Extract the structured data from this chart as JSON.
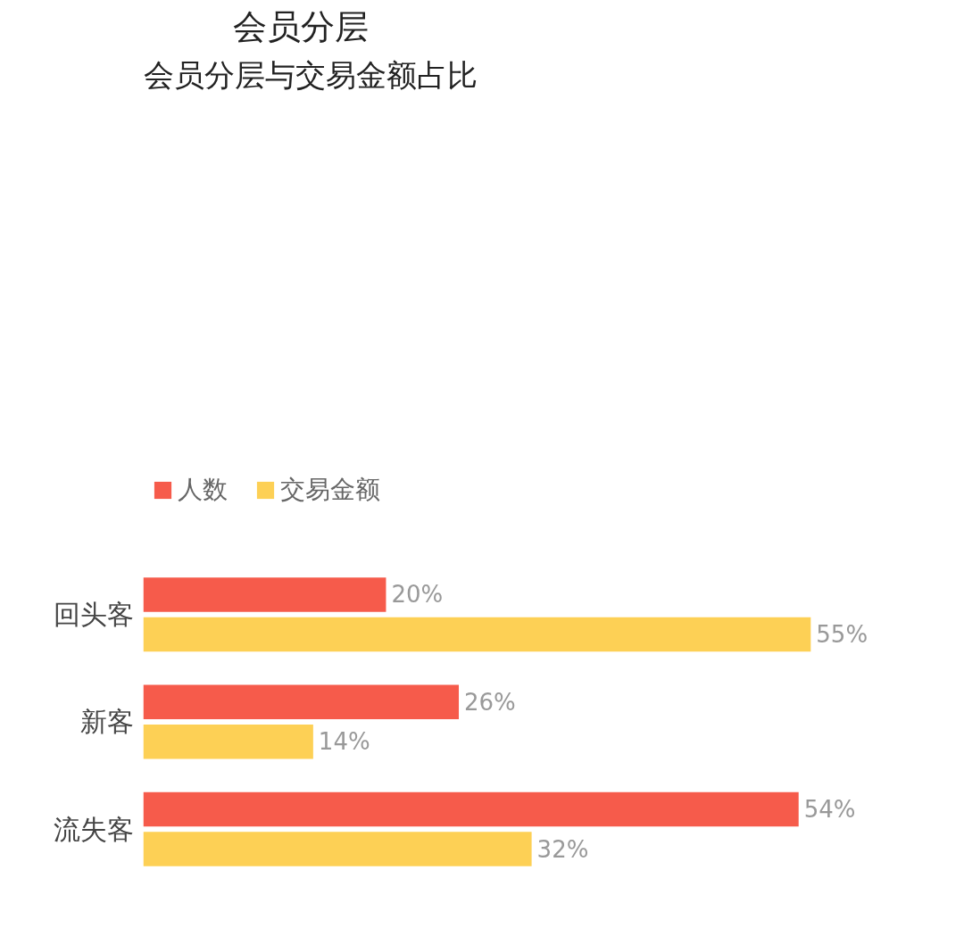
{
  "chart_data": {
    "type": "bar",
    "orientation": "horizontal",
    "title": "会员分层与交易金额占比",
    "annotations": [
      "会员分层"
    ],
    "categories": [
      "回头客",
      "新客",
      "流失客"
    ],
    "series": [
      {
        "name": "人数",
        "color": "#f65b4b",
        "values": [
          20,
          26,
          54
        ],
        "value_labels": [
          "20%",
          "26%",
          "54%"
        ]
      },
      {
        "name": "交易金额",
        "color": "#fdd055",
        "values": [
          55,
          14,
          32
        ],
        "value_labels": [
          "55%",
          "14%",
          "32%"
        ]
      }
    ],
    "legend": "top left",
    "tick_labels": "y",
    "grid": false
  }
}
